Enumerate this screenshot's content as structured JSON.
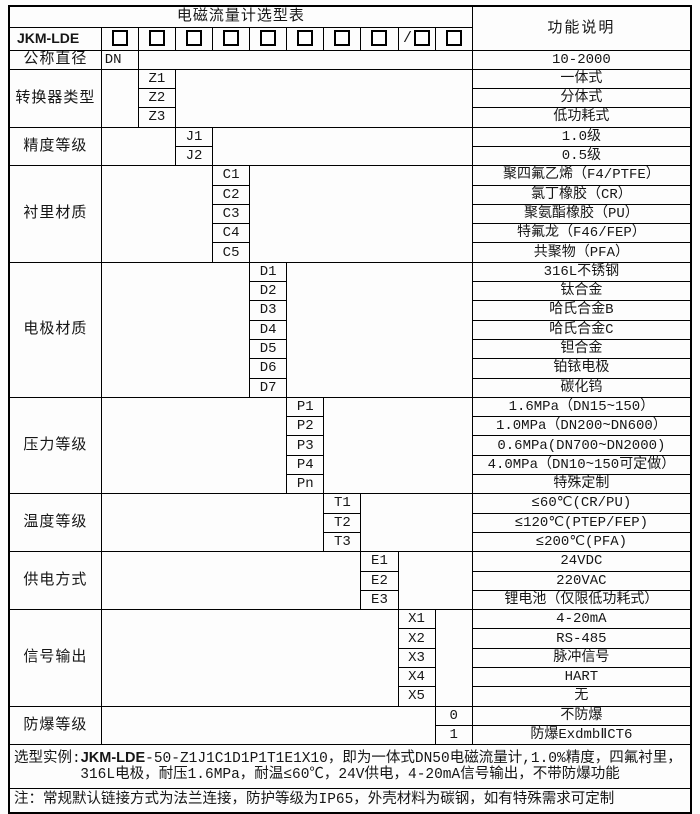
{
  "title": "电磁流量计选型表",
  "right_header": "功能说明",
  "model": {
    "prefix": "JKM-LDE",
    "checkbox_count": 10,
    "slash_prefix": "/"
  },
  "categories": [
    {
      "label": "公称直径",
      "codes": [
        "DN"
      ],
      "values": [
        "10-2000"
      ]
    },
    {
      "label": "转换器类型",
      "codes": [
        "Z1",
        "Z2",
        "Z3"
      ],
      "values": [
        "一体式",
        "分体式",
        "低功耗式"
      ]
    },
    {
      "label": "精度等级",
      "codes": [
        "J1",
        "J2"
      ],
      "values": [
        "1.0级",
        "0.5级"
      ]
    },
    {
      "label": "衬里材质",
      "codes": [
        "C1",
        "C2",
        "C3",
        "C4",
        "C5"
      ],
      "values": [
        "聚四氟乙烯（F4/PTFE）",
        "氯丁橡胶（CR）",
        "聚氨酯橡胶（PU）",
        "特氟龙（F46/FEP）",
        "共聚物（PFA）"
      ]
    },
    {
      "label": "电极材质",
      "codes": [
        "D1",
        "D2",
        "D3",
        "D4",
        "D5",
        "D6",
        "D7"
      ],
      "values": [
        "316L不锈钢",
        "钛合金",
        "哈氏合金B",
        "哈氏合金C",
        "钽合金",
        "铂铱电极",
        "碳化钨"
      ]
    },
    {
      "label": "压力等级",
      "codes": [
        "P1",
        "P2",
        "P3",
        "P4",
        "Pn"
      ],
      "values": [
        "1.6MPa（DN15~150）",
        "1.0MPa（DN200~DN600）",
        "0.6MPa(DN700~DN2000)",
        "4.0MPa（DN10~150可定做）",
        "特殊定制"
      ]
    },
    {
      "label": "温度等级",
      "codes": [
        "T1",
        "T2",
        "T3"
      ],
      "values": [
        "≤60℃(CR/PU)",
        "≤120℃(PTEP/FEP)",
        "≤200℃(PFA)"
      ]
    },
    {
      "label": "供电方式",
      "codes": [
        "E1",
        "E2",
        "E3"
      ],
      "values": [
        "24VDC",
        "220VAC",
        "锂电池（仅限低功耗式）"
      ]
    },
    {
      "label": "信号输出",
      "codes": [
        "X1",
        "X2",
        "X3",
        "X4",
        "X5"
      ],
      "values": [
        "4-20mA",
        "RS-485",
        "脉冲信号",
        "HART",
        "无"
      ]
    },
    {
      "label": "防爆等级",
      "codes": [
        "0",
        "1"
      ],
      "values": [
        "不防爆",
        "防爆ExdmbⅡCT6"
      ]
    }
  ],
  "example": {
    "label": "选型实例:",
    "model_bold": "JKM-LDE",
    "line1_rest": "-50-Z1J1C1D1P1T1E1X10，即为一体式DN50电磁流量计,1.0%精度，四氟衬里，",
    "line2": "316L电极，耐压1.6MPa，耐温≤60℃，24V供电，4-20mA信号输出，不带防爆功能"
  },
  "note": "注：常规默认链接方式为法兰连接，防护等级为IP65，外壳材料为碳钢，如有特殊需求可定制"
}
